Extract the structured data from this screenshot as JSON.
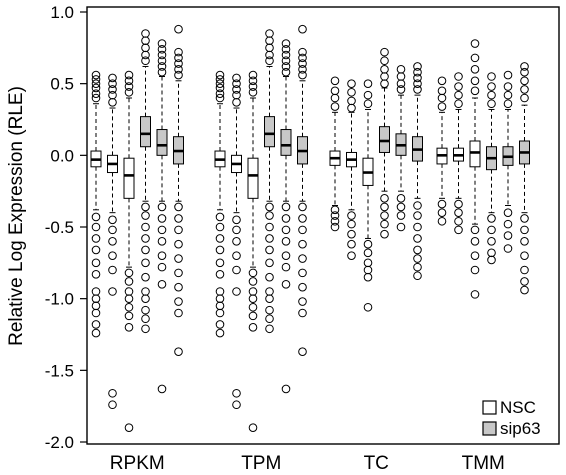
{
  "chart_data": {
    "type": "boxplot",
    "title": "",
    "xlabel": "",
    "ylabel": "Relative Log Expression (RLE)",
    "ylim": [
      -2.0,
      1.0
    ],
    "yticks": [
      1.0,
      0.5,
      0.0,
      -0.5,
      -1.0,
      -1.5,
      -2.0
    ],
    "ytick_labels": [
      "1.0",
      "0.5",
      "0.0",
      "-0.5",
      "-1.0",
      "-1.5",
      "-2.0"
    ],
    "grid": false,
    "legend": {
      "position": "bottom-right",
      "entries": [
        {
          "name": "NSC",
          "color": "#ffffff"
        },
        {
          "name": "sip63",
          "color": "#c8c8c8"
        }
      ]
    },
    "colors": {
      "NSC": "#ffffff",
      "sip63": "#c8c8c8",
      "stroke": "#000000"
    },
    "groups": [
      {
        "name": "RPKM",
        "boxes": [
          {
            "condition": "NSC",
            "q1": -0.08,
            "median": -0.03,
            "q3": 0.03,
            "whisker_low": -0.38,
            "whisker_high": 0.36,
            "outliers_high": [
              0.4,
              0.43,
              0.47,
              0.5,
              0.53,
              0.56
            ],
            "outliers_low": [
              -0.43,
              -0.5,
              -0.58,
              -0.66,
              -0.75,
              -0.83,
              -0.95,
              -1.0,
              -1.05,
              -1.1,
              -1.18,
              -1.24
            ]
          },
          {
            "condition": "NSC",
            "q1": -0.12,
            "median": -0.06,
            "q3": 0.0,
            "whisker_low": -0.4,
            "whisker_high": 0.33,
            "outliers_high": [
              0.37,
              0.42,
              0.46,
              0.5,
              0.54
            ],
            "outliers_low": [
              -0.45,
              -0.52,
              -0.6,
              -0.7,
              -0.8,
              -0.95,
              -1.66,
              -1.74
            ]
          },
          {
            "condition": "NSC",
            "q1": -0.3,
            "median": -0.14,
            "q3": -0.02,
            "whisker_low": -0.78,
            "whisker_high": 0.4,
            "outliers_high": [
              0.44,
              0.48,
              0.52,
              0.56
            ],
            "outliers_low": [
              -0.82,
              -0.88,
              -0.95,
              -1.0,
              -1.06,
              -1.12,
              -1.2,
              -1.9
            ]
          },
          {
            "condition": "sip63",
            "q1": 0.06,
            "median": 0.15,
            "q3": 0.27,
            "whisker_low": -0.32,
            "whisker_high": 0.62,
            "outliers_high": [
              0.66,
              0.7,
              0.75,
              0.8,
              0.85
            ],
            "outliers_low": [
              -0.36,
              -0.42,
              -0.5,
              -0.58,
              -0.66,
              -0.75,
              -0.85,
              -0.95,
              -1.0,
              -1.08,
              -1.14,
              -1.21
            ]
          },
          {
            "condition": "sip63",
            "q1": 0.0,
            "median": 0.07,
            "q3": 0.18,
            "whisker_low": -0.32,
            "whisker_high": 0.55,
            "outliers_high": [
              0.58,
              0.62,
              0.66,
              0.7,
              0.74,
              0.78
            ],
            "outliers_low": [
              -0.36,
              -0.44,
              -0.52,
              -0.6,
              -0.7,
              -0.78,
              -0.9,
              -1.63
            ]
          },
          {
            "condition": "sip63",
            "q1": -0.06,
            "median": 0.03,
            "q3": 0.13,
            "whisker_low": -0.32,
            "whisker_high": 0.52,
            "outliers_high": [
              0.56,
              0.6,
              0.64,
              0.68,
              0.72,
              0.88
            ],
            "outliers_low": [
              -0.36,
              -0.44,
              -0.52,
              -0.62,
              -0.72,
              -0.82,
              -0.92,
              -1.02,
              -1.1,
              -1.37
            ]
          }
        ]
      },
      {
        "name": "TPM",
        "boxes": [
          {
            "condition": "NSC",
            "q1": -0.08,
            "median": -0.03,
            "q3": 0.03,
            "whisker_low": -0.38,
            "whisker_high": 0.36,
            "outliers_high": [
              0.4,
              0.43,
              0.47,
              0.5,
              0.53,
              0.56
            ],
            "outliers_low": [
              -0.43,
              -0.5,
              -0.58,
              -0.66,
              -0.75,
              -0.83,
              -0.95,
              -1.0,
              -1.05,
              -1.1,
              -1.18,
              -1.24
            ]
          },
          {
            "condition": "NSC",
            "q1": -0.12,
            "median": -0.06,
            "q3": 0.0,
            "whisker_low": -0.4,
            "whisker_high": 0.33,
            "outliers_high": [
              0.37,
              0.42,
              0.46,
              0.5,
              0.54
            ],
            "outliers_low": [
              -0.45,
              -0.52,
              -0.6,
              -0.7,
              -0.8,
              -0.95,
              -1.66,
              -1.74
            ]
          },
          {
            "condition": "NSC",
            "q1": -0.3,
            "median": -0.14,
            "q3": -0.02,
            "whisker_low": -0.78,
            "whisker_high": 0.4,
            "outliers_high": [
              0.44,
              0.48,
              0.52,
              0.56
            ],
            "outliers_low": [
              -0.82,
              -0.88,
              -0.95,
              -1.0,
              -1.06,
              -1.12,
              -1.2,
              -1.9
            ]
          },
          {
            "condition": "sip63",
            "q1": 0.06,
            "median": 0.15,
            "q3": 0.27,
            "whisker_low": -0.32,
            "whisker_high": 0.62,
            "outliers_high": [
              0.66,
              0.7,
              0.75,
              0.8,
              0.85
            ],
            "outliers_low": [
              -0.36,
              -0.42,
              -0.5,
              -0.58,
              -0.66,
              -0.75,
              -0.85,
              -0.95,
              -1.0,
              -1.08,
              -1.14,
              -1.21
            ]
          },
          {
            "condition": "sip63",
            "q1": 0.0,
            "median": 0.07,
            "q3": 0.18,
            "whisker_low": -0.32,
            "whisker_high": 0.55,
            "outliers_high": [
              0.58,
              0.62,
              0.66,
              0.7,
              0.74,
              0.78
            ],
            "outliers_low": [
              -0.36,
              -0.44,
              -0.52,
              -0.6,
              -0.7,
              -0.78,
              -0.9,
              -1.63
            ]
          },
          {
            "condition": "sip63",
            "q1": -0.06,
            "median": 0.03,
            "q3": 0.13,
            "whisker_low": -0.32,
            "whisker_high": 0.52,
            "outliers_high": [
              0.56,
              0.6,
              0.64,
              0.68,
              0.72,
              0.88
            ],
            "outliers_low": [
              -0.36,
              -0.44,
              -0.52,
              -0.62,
              -0.72,
              -0.82,
              -0.92,
              -1.02,
              -1.1,
              -1.37
            ]
          }
        ]
      },
      {
        "name": "TC",
        "boxes": [
          {
            "condition": "NSC",
            "q1": -0.07,
            "median": -0.02,
            "q3": 0.03,
            "whisker_low": -0.35,
            "whisker_high": 0.3,
            "outliers_high": [
              0.34,
              0.4,
              0.45,
              0.52
            ],
            "outliers_low": [
              -0.38,
              -0.42,
              -0.46,
              -0.5
            ]
          },
          {
            "condition": "NSC",
            "q1": -0.08,
            "median": -0.03,
            "q3": 0.02,
            "whisker_low": -0.38,
            "whisker_high": 0.3,
            "outliers_high": [
              0.33,
              0.38,
              0.44,
              0.5
            ],
            "outliers_low": [
              -0.42,
              -0.48,
              -0.55,
              -0.62,
              -0.7
            ]
          },
          {
            "condition": "NSC",
            "q1": -0.21,
            "median": -0.12,
            "q3": -0.02,
            "whisker_low": -0.58,
            "whisker_high": 0.32,
            "outliers_high": [
              0.36,
              0.42,
              0.5
            ],
            "outliers_low": [
              -0.62,
              -0.68,
              -0.75,
              -0.8,
              -0.85,
              -1.06
            ]
          },
          {
            "condition": "sip63",
            "q1": 0.02,
            "median": 0.1,
            "q3": 0.2,
            "whisker_low": -0.25,
            "whisker_high": 0.47,
            "outliers_high": [
              0.5,
              0.55,
              0.6,
              0.66,
              0.72
            ],
            "outliers_low": [
              -0.3,
              -0.36,
              -0.42,
              -0.48,
              -0.55
            ]
          },
          {
            "condition": "sip63",
            "q1": 0.0,
            "median": 0.07,
            "q3": 0.15,
            "whisker_low": -0.25,
            "whisker_high": 0.42,
            "outliers_high": [
              0.46,
              0.5,
              0.55,
              0.6
            ],
            "outliers_low": [
              -0.3,
              -0.36,
              -0.42,
              -0.5
            ]
          },
          {
            "condition": "sip63",
            "q1": -0.04,
            "median": 0.04,
            "q3": 0.13,
            "whisker_low": -0.3,
            "whisker_high": 0.42,
            "outliers_high": [
              0.46,
              0.5,
              0.54,
              0.58,
              0.62
            ],
            "outliers_low": [
              -0.35,
              -0.42,
              -0.5,
              -0.58,
              -0.66,
              -0.72,
              -0.78,
              -0.84
            ]
          }
        ]
      },
      {
        "name": "TMM",
        "boxes": [
          {
            "condition": "NSC",
            "q1": -0.06,
            "median": 0.0,
            "q3": 0.05,
            "whisker_low": -0.3,
            "whisker_high": 0.3,
            "outliers_high": [
              0.34,
              0.4,
              0.45,
              0.52
            ],
            "outliers_low": [
              -0.34,
              -0.4,
              -0.46
            ]
          },
          {
            "condition": "NSC",
            "q1": -0.04,
            "median": 0.0,
            "q3": 0.05,
            "whisker_low": -0.3,
            "whisker_high": 0.32,
            "outliers_high": [
              0.36,
              0.42,
              0.48,
              0.55
            ],
            "outliers_low": [
              -0.34,
              -0.4,
              -0.46,
              -0.52
            ]
          },
          {
            "condition": "NSC",
            "q1": -0.08,
            "median": 0.02,
            "q3": 0.1,
            "whisker_low": -0.48,
            "whisker_high": 0.4,
            "outliers_high": [
              0.45,
              0.52,
              0.6,
              0.68,
              0.78
            ],
            "outliers_low": [
              -0.52,
              -0.6,
              -0.7,
              -0.8,
              -0.97
            ]
          },
          {
            "condition": "sip63",
            "q1": -0.1,
            "median": -0.02,
            "q3": 0.06,
            "whisker_low": -0.4,
            "whisker_high": 0.32,
            "outliers_high": [
              0.36,
              0.42,
              0.48,
              0.55
            ],
            "outliers_low": [
              -0.44,
              -0.52,
              -0.6,
              -0.68,
              -0.73
            ]
          },
          {
            "condition": "sip63",
            "q1": -0.07,
            "median": -0.01,
            "q3": 0.06,
            "whisker_low": -0.35,
            "whisker_high": 0.32,
            "outliers_high": [
              0.36,
              0.42,
              0.48,
              0.56
            ],
            "outliers_low": [
              -0.4,
              -0.48,
              -0.56,
              -0.65
            ]
          },
          {
            "condition": "sip63",
            "q1": -0.06,
            "median": 0.02,
            "q3": 0.1,
            "whisker_low": -0.4,
            "whisker_high": 0.35,
            "outliers_high": [
              0.4,
              0.46,
              0.52,
              0.58,
              0.62
            ],
            "outliers_low": [
              -0.44,
              -0.52,
              -0.6,
              -0.7,
              -0.8,
              -0.88,
              -0.94
            ]
          }
        ]
      }
    ]
  }
}
